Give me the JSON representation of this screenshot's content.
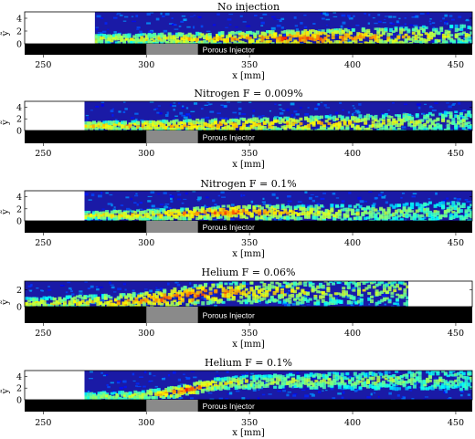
{
  "figure": {
    "xlabel": "x [mm]",
    "ylabel": "ỹ",
    "injector_label": "Porous Injector",
    "x_ticks": [
      "250",
      "300",
      "350",
      "400",
      "450"
    ],
    "x_tick_values": [
      250,
      300,
      350,
      400,
      450
    ]
  },
  "chart_data": [
    {
      "type": "heatmap",
      "title": "No injection",
      "xlabel": "x [mm]",
      "ylabel": "ỹ",
      "xlim": [
        241,
        458
      ],
      "ylim": [
        0,
        5
      ],
      "y_ticks": [
        0,
        2,
        4
      ],
      "data_x_range": [
        275,
        458
      ],
      "injector_x_range": [
        300,
        325
      ],
      "colormap": "jet",
      "background_color": "#1a1aa6",
      "layer": {
        "x": [
          275,
          300,
          325,
          350,
          375,
          400,
          425,
          458
        ],
        "y_center": [
          0.8,
          0.8,
          0.8,
          0.85,
          0.9,
          1.0,
          1.1,
          1.2
        ],
        "intensity": [
          0.45,
          0.5,
          0.55,
          0.6,
          0.75,
          0.65,
          0.5,
          0.35
        ]
      }
    },
    {
      "type": "heatmap",
      "title": "Nitrogen F = 0.009%",
      "xlabel": "x [mm]",
      "ylabel": "ỹ",
      "xlim": [
        241,
        458
      ],
      "ylim": [
        0,
        5
      ],
      "y_ticks": [
        0,
        2,
        4
      ],
      "data_x_range": [
        270,
        458
      ],
      "injector_x_range": [
        300,
        325
      ],
      "colormap": "jet",
      "background_color": "#1a1aa6",
      "layer": {
        "x": [
          270,
          300,
          325,
          350,
          375,
          400,
          425,
          458
        ],
        "y_center": [
          0.8,
          0.85,
          0.9,
          1.0,
          1.1,
          1.2,
          1.4,
          1.6
        ],
        "intensity": [
          0.55,
          0.6,
          0.62,
          0.6,
          0.58,
          0.55,
          0.45,
          0.35
        ]
      }
    },
    {
      "type": "heatmap",
      "title": "Nitrogen F = 0.1%",
      "xlabel": "x [mm]",
      "ylabel": "ỹ",
      "xlim": [
        241,
        458
      ],
      "ylim": [
        0,
        5
      ],
      "y_ticks": [
        0,
        2,
        4
      ],
      "data_x_range": [
        270,
        458
      ],
      "injector_x_range": [
        300,
        325
      ],
      "colormap": "jet",
      "background_color": "#1a1aa6",
      "layer": {
        "x": [
          270,
          300,
          325,
          340,
          350,
          375,
          400,
          425,
          458
        ],
        "y_center": [
          0.9,
          1.0,
          1.3,
          1.5,
          1.5,
          1.4,
          1.3,
          1.4,
          1.6
        ],
        "intensity": [
          0.5,
          0.55,
          0.65,
          0.7,
          0.65,
          0.5,
          0.4,
          0.35,
          0.3
        ]
      }
    },
    {
      "type": "heatmap",
      "title": "Helium F = 0.06%",
      "xlabel": "x [mm]",
      "ylabel": "ỹ",
      "xlim": [
        241,
        458
      ],
      "ylim": [
        0,
        3
      ],
      "y_ticks": [
        0,
        2
      ],
      "data_x_range": [
        241,
        427
      ],
      "injector_x_range": [
        300,
        325
      ],
      "colormap": "jet",
      "background_color": "#1a1aa6",
      "layer": {
        "x": [
          241,
          270,
          290,
          310,
          325,
          340,
          360,
          390,
          427
        ],
        "y_center": [
          0.4,
          0.5,
          0.6,
          1.0,
          1.5,
          1.7,
          1.8,
          1.8,
          1.9
        ],
        "intensity": [
          0.45,
          0.5,
          0.6,
          0.7,
          0.72,
          0.6,
          0.5,
          0.45,
          0.4
        ]
      }
    },
    {
      "type": "heatmap",
      "title": "Helium F = 0.1%",
      "xlabel": "x [mm]",
      "ylabel": "ỹ",
      "xlim": [
        241,
        458
      ],
      "ylim": [
        0,
        5
      ],
      "y_ticks": [
        0,
        2,
        4
      ],
      "data_x_range": [
        270,
        458
      ],
      "injector_x_range": [
        300,
        325
      ],
      "colormap": "jet",
      "background_color": "#1a1aa6",
      "layer": {
        "x": [
          270,
          295,
          310,
          320,
          330,
          345,
          370,
          400,
          430,
          458
        ],
        "y_center": [
          0.5,
          0.7,
          1.2,
          1.8,
          2.6,
          3.0,
          3.2,
          3.3,
          3.4,
          3.5
        ],
        "intensity": [
          0.35,
          0.45,
          0.6,
          0.75,
          0.55,
          0.45,
          0.4,
          0.38,
          0.35,
          0.3
        ]
      }
    }
  ]
}
